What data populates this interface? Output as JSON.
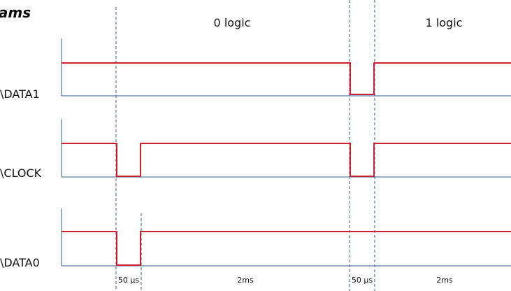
{
  "heading": "rams",
  "phase_labels": {
    "zero": "0 logic",
    "one": "1 logic"
  },
  "signals": {
    "data1": {
      "name": "\\DATA1"
    },
    "clock": {
      "name": "\\CLOCK"
    },
    "data0": {
      "name": "\\DATA0"
    }
  },
  "timing_labels": {
    "pulse_a": "50 µs",
    "gap_a": "2ms",
    "pulse_b": "50 µs",
    "gap_b": "2ms"
  },
  "colors": {
    "signal": "#d0202e",
    "axis": "#2f5a8e",
    "marker": "#2f5a8e"
  }
}
